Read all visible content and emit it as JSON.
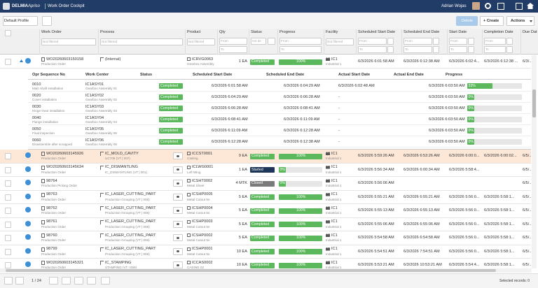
{
  "header": {
    "brand": "DELMIA",
    "product_name": "Apriso",
    "app_title": "Work Order Cockpit",
    "user": "Adrian Wojas"
  },
  "toolbar": {
    "profile": "Default Profile",
    "delete": "Delete",
    "create": "+ Create",
    "actions": "Actions"
  },
  "columns": [
    "Work Order",
    "Process",
    "Product",
    "Qty",
    "Status",
    "Progress",
    "Facility",
    "Scheduled Start Date",
    "Scheduled End Date",
    "Start Date",
    "Completion Date",
    "Due Dat"
  ],
  "filters": {
    "text": "Not filtered",
    "from": "From",
    "to": "To",
    "status": "not de"
  },
  "rows": [
    {
      "wo": "WO20260603150158",
      "wo_type": "Production Order",
      "process": "(Internal)",
      "product": "ICRVG0063",
      "product_desc": "Gearbox Assembly",
      "qty": "1 EA",
      "status": "Completed",
      "progress": 100,
      "progress_label": "100%",
      "facility": "IC1",
      "facility_desc": "Industrial 1",
      "sched_start": "6/3/2026 6:01:58 AM",
      "sched_end": "6/3/2026 6:12:38 AM",
      "start": "6/3/2026 6:02:4...",
      "completion": "6/3/2026 6:12:38 ...",
      "due": "6/3/..."
    },
    {
      "wo": "WO20260603145926",
      "wo_type": "Production Order",
      "process": "IC_MOLD_CAVITY",
      "process_sub": "UC709 (VT | 007)",
      "product": "ICCST0001",
      "product_desc": "Casting",
      "qty": "9 EA",
      "status": "Completed",
      "progress": 100,
      "progress_label": "100%",
      "facility": "IC1",
      "facility_desc": "Industrial 1",
      "sched_start": "6/3/2026 5:59:26 AM",
      "sched_end": "6/3/2026 6:53:26 AM",
      "start": "6/3/2026 6:00:0...",
      "completion": "6/3/2026 6:00:02...",
      "due": "6/5/..."
    },
    {
      "wo": "WO20260603145634",
      "wo_type": "Production Order",
      "process": "IC_DISMANTLING",
      "process_sub": "IC_DISMANTLING (VT | 001)",
      "product": "ICLWG0001",
      "product_desc": "Left Wing",
      "qty": "1 EA",
      "status": "Started",
      "progress": 0,
      "progress_label": "0%",
      "facility": "IC1",
      "facility_desc": "Industrial 1",
      "sched_start": "6/3/2026 5:56:34 AM",
      "sched_end": "6/3/2026 6:00:34 AM",
      "start": "6/3/2026 5:58:4...",
      "due": "6/5/..."
    },
    {
      "wo": "98764",
      "wo_type": "Production Picking Order",
      "product": "ICSHT0002",
      "product_desc": "Metal Sheet",
      "qty": "4 MTK",
      "status": "Closed",
      "progress": 0,
      "progress_label": "0%",
      "facility": "IC1",
      "facility_desc": "Industrial 1",
      "sched_start": "6/3/2026 5:56:06 AM",
      "due": "6/5/..."
    },
    {
      "wo": "98763",
      "wo_type": "Production Order",
      "process": "IC_LASER_CUTTING_PART",
      "process_sub": "Production Grouping (VT | 006)",
      "product": "ICSHP0005",
      "product_desc": "Metal Cutout 5n",
      "qty": "5 EA",
      "status": "Completed",
      "progress": 100,
      "progress_label": "100%",
      "facility": "IC1",
      "facility_desc": "Industrial 1",
      "sched_start": "6/3/2026 5:55:21 AM",
      "sched_end": "6/3/2026 6:55:21 AM",
      "start": "6/3/2026 5:56:0...",
      "completion": "6/3/2026 5:58:1...",
      "due": "6/5/..."
    },
    {
      "wo": "98762",
      "wo_type": "Production Order",
      "process": "IC_LASER_CUTTING_PART",
      "process_sub": "Production Grouping (VT | 006)",
      "product": "ICSHP0004",
      "product_desc": "Metal Cutout 5n",
      "qty": "5 EA",
      "status": "Completed",
      "progress": 100,
      "progress_label": "100%",
      "facility": "IC1",
      "facility_desc": "Industrial 1",
      "sched_start": "6/3/2026 5:55:13 AM",
      "sched_end": "6/3/2026 6:55:13 AM",
      "start": "6/3/2026 5:56:0...",
      "completion": "6/3/2026 5:58:1...",
      "due": "6/5/..."
    },
    {
      "wo": "98761",
      "wo_type": "Production Order",
      "process": "IC_LASER_CUTTING_PART",
      "process_sub": "Production Grouping (VT | 006)",
      "product": "ICSHP0003",
      "product_desc": "Metal Cutout 5n",
      "qty": "5 EA",
      "status": "Completed",
      "progress": 100,
      "progress_label": "100%",
      "facility": "IC1",
      "facility_desc": "Industrial 1",
      "sched_start": "6/3/2026 5:55:06 AM",
      "sched_end": "6/3/2026 6:55:06 AM",
      "start": "6/3/2026 5:56:0...",
      "completion": "6/3/2026 5:58:1...",
      "due": "6/5/..."
    },
    {
      "wo": "98760",
      "wo_type": "Production Order",
      "process": "IC_LASER_CUTTING_PART",
      "process_sub": "Production Grouping (VT | 006)",
      "product": "ICSHP0002",
      "product_desc": "Metal Cutout 5n",
      "qty": "5 EA",
      "status": "Completed",
      "progress": 100,
      "progress_label": "100%",
      "facility": "IC1",
      "facility_desc": "Industrial 1",
      "sched_start": "6/3/2026 5:54:58 AM",
      "sched_end": "6/3/2026 6:54:58 AM",
      "start": "6/3/2026 5:56:0...",
      "completion": "6/3/2026 5:58:1...",
      "due": "6/5/..."
    },
    {
      "wo": "98799",
      "wo_type": "Production Order",
      "process": "IC_LASER_CUTTING_PART",
      "process_sub": "Production Grouping (VT | 006)",
      "product": "ICSHP0001",
      "product_desc": "Metal Cutout 5n",
      "qty": "10 EA",
      "status": "Completed",
      "progress": 100,
      "progress_label": "100%",
      "facility": "IC1",
      "facility_desc": "Industrial 1",
      "sched_start": "6/3/2026 5:54:51 AM",
      "sched_end": "6/3/2026 7:54:51 AM",
      "start": "6/3/2026 5:56:0...",
      "completion": "6/3/2026 5:58:1...",
      "due": "6/5/..."
    },
    {
      "wo": "WO20260603145321",
      "wo_type": "Production Order",
      "process": "IC_STAMPING",
      "process_sub": "STAMPING (VT | 006)",
      "product": "ICCAS0002",
      "product_desc": "CASING 02",
      "qty": "10 EA",
      "status": "Completed",
      "progress": 100,
      "progress_label": "100%",
      "facility": "IC1",
      "facility_desc": "Industrial 1",
      "sched_start": "6/3/2026 5:53:21 AM",
      "sched_end": "6/3/2026 10:53:21 AM",
      "start": "6/3/2026 5:54:4...",
      "completion": "6/3/2026 5:58:1...",
      "due": "6/5/..."
    }
  ],
  "sub_columns": [
    "Opr Sequence No",
    "Work Center",
    "Status",
    "Scheduled Start Date",
    "Scheduled End Date",
    "Actual Start Date",
    "Actual End Date",
    "Progress"
  ],
  "sub_rows": [
    {
      "seq": "0010",
      "seq_desc": "Main shaft installation",
      "wc": "IC1ASY01",
      "wc_desc": "Gearbox Assembly 01",
      "status": "Completed",
      "sched_start": "6/3/2026 6:01:58 AM",
      "sched_end": "6/3/2026 6:04:29 AM",
      "actual_start": "6/3/2026 6:02:48 AM",
      "actual_end": "6/3/2026 6:03:50 AM",
      "progress": 33,
      "progress_label": "33%"
    },
    {
      "seq": "0020",
      "seq_desc": "Cover installation",
      "wc": "IC1ASY02",
      "wc_desc": "Gearbox Assembly 02",
      "status": "Completed",
      "sched_start": "6/3/2026 6:04:29 AM",
      "sched_end": "6/3/2026 6:06:28 AM",
      "actual_start": "-",
      "actual_end": "6/3/2026 6:03:50 AM",
      "progress": 0,
      "progress_label": "0%"
    },
    {
      "seq": "0030",
      "seq_desc": "Hinge Gear installation",
      "wc": "IC1ASY03",
      "wc_desc": "Gearbox Assembly 03",
      "status": "Completed",
      "sched_start": "6/3/2026 6:06:28 AM",
      "sched_end": "6/3/2026 6:08:41 AM",
      "actual_start": "-",
      "actual_end": "6/3/2026 6:03:50 AM",
      "progress": 0,
      "progress_label": "0%"
    },
    {
      "seq": "0040",
      "seq_desc": "Flange installation",
      "wc": "IC1ASY04",
      "wc_desc": "Gearbox Assembly 04",
      "status": "Completed",
      "sched_start": "6/3/2026 6:08:41 AM",
      "sched_end": "6/3/2026 6:11:09 AM",
      "actual_start": "-",
      "actual_end": "6/3/2026 6:03:50 AM",
      "progress": 0,
      "progress_label": "0%"
    },
    {
      "seq": "0050",
      "seq_desc": "Final inspection",
      "wc": "IC1ASY05",
      "wc_desc": "Gearbox Assembly 05",
      "status": "Completed",
      "sched_start": "6/3/2026 6:11:09 AM",
      "sched_end": "6/3/2026 6:12:28 AM",
      "actual_start": "-",
      "actual_end": "6/3/2026 6:03:50 AM",
      "progress": 0,
      "progress_label": "0%"
    },
    {
      "seq": "0060",
      "seq_desc": "Disassemble after scrapped",
      "wc": "IC1ASY06",
      "wc_desc": "Gearbox Assembly 06",
      "status": "Completed",
      "sched_start": "6/3/2026 6:12:28 AM",
      "sched_end": "6/3/2026 6:12:38 AM",
      "actual_start": "-",
      "actual_end": "6/3/2026 6:03:50 AM",
      "progress": 0,
      "progress_label": "0%"
    }
  ],
  "footer": {
    "page": "1 / 24",
    "selected": "Selected records: 0"
  }
}
